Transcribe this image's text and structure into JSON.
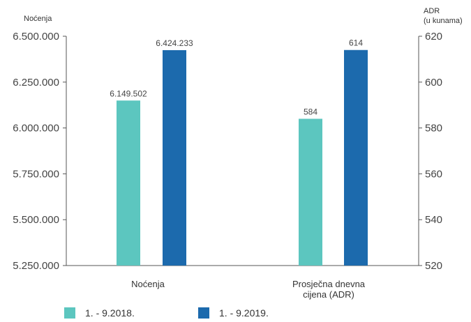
{
  "colors": {
    "series_2018": "#5cc6bf",
    "series_2019": "#1c6aad",
    "axis": "#555555"
  },
  "chart_data": {
    "type": "bar",
    "left_axis_title": "Noćenja",
    "right_axis_title": [
      "ADR",
      "(u kunama)"
    ],
    "left_axis": {
      "ylim": [
        5250000,
        6500000
      ],
      "ticks": [
        5250000,
        5500000,
        5750000,
        6000000,
        6250000,
        6500000
      ],
      "tick_labels": [
        "5.250.000",
        "5.500.000",
        "5.750.000",
        "6.000.000",
        "6.250.000",
        "6.500.000"
      ]
    },
    "right_axis": {
      "ylim": [
        520,
        620
      ],
      "ticks": [
        520,
        540,
        560,
        580,
        600,
        620
      ],
      "tick_labels": [
        "520",
        "540",
        "560",
        "580",
        "600",
        "620"
      ]
    },
    "categories": [
      {
        "label": [
          "Noćenja"
        ],
        "axis": "left",
        "values": [
          6149502,
          6424233
        ],
        "value_labels": [
          "6.149.502",
          "6.424.233"
        ]
      },
      {
        "label": [
          "Prosječna dnevna",
          "cijena (ADR)"
        ],
        "axis": "right",
        "values": [
          584,
          614
        ],
        "value_labels": [
          "584",
          "614"
        ]
      }
    ],
    "series": [
      {
        "name": "1. - 9.2018."
      },
      {
        "name": "1. - 9.2019."
      }
    ],
    "grid": false,
    "legend_position": "bottom"
  }
}
